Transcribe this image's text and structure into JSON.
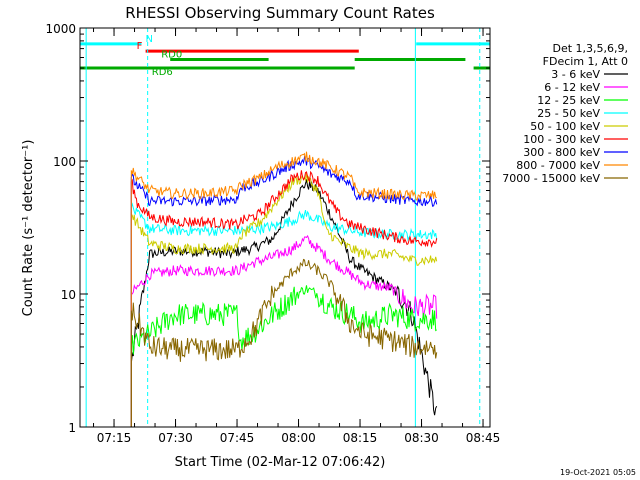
{
  "chart_data": {
    "type": "line",
    "title": "RHESSI Observing Summary Count Rates",
    "xlabel": "Start Time (02-Mar-12 07:06:42)",
    "ylabel": "Count Rate (s⁻¹ detector⁻¹)",
    "yscale": "log",
    "ylim": [
      1,
      1000
    ],
    "xlim_minutes": [
      0,
      100
    ],
    "x_ticks": [
      {
        "label": "07:15",
        "minute": 8.3
      },
      {
        "label": "07:30",
        "minute": 23.3
      },
      {
        "label": "07:45",
        "minute": 38.3
      },
      {
        "label": "08:00",
        "minute": 53.3
      },
      {
        "label": "08:15",
        "minute": 68.3
      },
      {
        "label": "08:30",
        "minute": 83.3
      },
      {
        "label": "08:45",
        "minute": 98.3
      }
    ],
    "y_ticks": [
      {
        "label": "1",
        "value": 1
      },
      {
        "label": "10",
        "value": 10
      },
      {
        "label": "100",
        "value": 100
      },
      {
        "label": "1000",
        "value": 1000
      }
    ],
    "legend": {
      "header": [
        "Det 1,3,5,6,9,",
        "FDecim 1, Att 0"
      ],
      "placement": "right"
    },
    "flags": [
      {
        "label": "N",
        "color": "#00ffff",
        "level": 760,
        "segments": [
          [
            0,
            15
          ],
          [
            82,
            100
          ]
        ]
      },
      {
        "label": "F",
        "color": "#ff0000",
        "level": 670,
        "segments": [
          [
            16,
            68
          ]
        ]
      },
      {
        "label": "RD0",
        "color": "#00aa00",
        "level": 580,
        "segments": [
          [
            22,
            46
          ],
          [
            67,
            94
          ]
        ]
      },
      {
        "label": "RD6",
        "color": "#00aa00",
        "level": 500,
        "segments": [
          [
            0,
            67
          ],
          [
            96,
            100
          ]
        ]
      }
    ],
    "vertical_lines": [
      {
        "minute": 1.5,
        "style": "solid",
        "color": "#00ffff"
      },
      {
        "minute": 16.5,
        "style": "dashed",
        "color": "#00ffff"
      },
      {
        "minute": 81.8,
        "style": "solid",
        "color": "#00ffff"
      },
      {
        "minute": 97.5,
        "style": "dashed",
        "color": "#00ffff"
      }
    ],
    "data_window_minutes": [
      12.5,
      87
    ],
    "series": [
      {
        "name": "3 - 6 keV",
        "color": "#000000",
        "points": [
          [
            12.5,
            3
          ],
          [
            17,
            20
          ],
          [
            23,
            21
          ],
          [
            30,
            21
          ],
          [
            37,
            20
          ],
          [
            38.5,
            21
          ],
          [
            42,
            22
          ],
          [
            47,
            26
          ],
          [
            52,
            50
          ],
          [
            55,
            68
          ],
          [
            58,
            60
          ],
          [
            61,
            40
          ],
          [
            66,
            18
          ],
          [
            69,
            15
          ],
          [
            76,
            11
          ],
          [
            79,
            9
          ],
          [
            81,
            7
          ],
          [
            87,
            1.2
          ]
        ]
      },
      {
        "name": "6 - 12 keV",
        "color": "#ff00ff",
        "points": [
          [
            12.5,
            10
          ],
          [
            17,
            14
          ],
          [
            23,
            15
          ],
          [
            30,
            15
          ],
          [
            38.5,
            15
          ],
          [
            42,
            17
          ],
          [
            47,
            19
          ],
          [
            52,
            22
          ],
          [
            55,
            26
          ],
          [
            58,
            22
          ],
          [
            61,
            18
          ],
          [
            66,
            14
          ],
          [
            69,
            12
          ],
          [
            76,
            11
          ],
          [
            81,
            8
          ],
          [
            87,
            8
          ]
        ]
      },
      {
        "name": "12 - 25 keV",
        "color": "#00ff00",
        "points": [
          [
            12.5,
            4
          ],
          [
            17,
            5
          ],
          [
            23,
            7
          ],
          [
            30,
            7
          ],
          [
            38.5,
            7
          ],
          [
            39,
            4.5
          ],
          [
            42,
            5
          ],
          [
            47,
            7
          ],
          [
            52,
            9.5
          ],
          [
            55,
            11
          ],
          [
            58,
            10
          ],
          [
            61,
            8
          ],
          [
            66,
            7
          ],
          [
            69,
            6
          ],
          [
            76,
            7
          ],
          [
            81,
            6.5
          ],
          [
            87,
            6.5
          ]
        ]
      },
      {
        "name": "25 - 50 keV",
        "color": "#00ffff",
        "points": [
          [
            12.5,
            45
          ],
          [
            17,
            31
          ],
          [
            23,
            30
          ],
          [
            30,
            30
          ],
          [
            38.5,
            30
          ],
          [
            39,
            30
          ],
          [
            47,
            32
          ],
          [
            52,
            36
          ],
          [
            55,
            40
          ],
          [
            58,
            36
          ],
          [
            61,
            32
          ],
          [
            66,
            30
          ],
          [
            69,
            29
          ],
          [
            76,
            28
          ],
          [
            81,
            28
          ],
          [
            87,
            28
          ]
        ]
      },
      {
        "name": "50 - 100 keV",
        "color": "#cccc00",
        "points": [
          [
            12.5,
            40
          ],
          [
            17,
            24
          ],
          [
            23,
            22
          ],
          [
            30,
            22
          ],
          [
            38.5,
            22
          ],
          [
            39,
            27
          ],
          [
            44,
            35
          ],
          [
            48,
            50
          ],
          [
            52,
            70
          ],
          [
            55,
            76
          ],
          [
            58,
            60
          ],
          [
            60,
            30
          ],
          [
            63,
            25
          ],
          [
            66,
            22
          ],
          [
            69,
            20
          ],
          [
            76,
            20
          ],
          [
            81,
            18
          ],
          [
            87,
            18
          ]
        ]
      },
      {
        "name": "100 - 300 keV",
        "color": "#ff0000",
        "points": [
          [
            12.5,
            70
          ],
          [
            14,
            48
          ],
          [
            17,
            38
          ],
          [
            23,
            35
          ],
          [
            30,
            35
          ],
          [
            38.5,
            33
          ],
          [
            39,
            35
          ],
          [
            44,
            40
          ],
          [
            48,
            55
          ],
          [
            52,
            75
          ],
          [
            55,
            80
          ],
          [
            58,
            72
          ],
          [
            60,
            55
          ],
          [
            63,
            40
          ],
          [
            66,
            33
          ],
          [
            69,
            31
          ],
          [
            76,
            27
          ],
          [
            81,
            25
          ],
          [
            87,
            25
          ]
        ]
      },
      {
        "name": "300 - 800 keV",
        "color": "#0000ff",
        "points": [
          [
            12.5,
            75
          ],
          [
            17,
            50
          ],
          [
            23,
            50
          ],
          [
            30,
            50
          ],
          [
            38.5,
            52
          ],
          [
            39,
            62
          ],
          [
            44,
            70
          ],
          [
            48,
            82
          ],
          [
            52,
            95
          ],
          [
            55,
            100
          ],
          [
            58,
            92
          ],
          [
            61,
            80
          ],
          [
            66,
            70
          ],
          [
            67.5,
            55
          ],
          [
            69,
            55
          ],
          [
            76,
            52
          ],
          [
            81,
            50
          ],
          [
            87,
            50
          ]
        ]
      },
      {
        "name": "800 - 7000 keV",
        "color": "#ff8800",
        "points": [
          [
            12.5,
            85
          ],
          [
            17,
            60
          ],
          [
            23,
            57
          ],
          [
            30,
            57
          ],
          [
            38.5,
            60
          ],
          [
            39,
            65
          ],
          [
            44,
            75
          ],
          [
            48,
            90
          ],
          [
            52,
            100
          ],
          [
            55,
            108
          ],
          [
            58,
            100
          ],
          [
            61,
            90
          ],
          [
            66,
            75
          ],
          [
            67.5,
            58
          ],
          [
            69,
            58
          ],
          [
            76,
            56
          ],
          [
            81,
            55
          ],
          [
            87,
            55
          ]
        ]
      },
      {
        "name": "7000 - 15000 keV",
        "color": "#886600",
        "points": [
          [
            12.5,
            7.5
          ],
          [
            15,
            5.5
          ],
          [
            17,
            4
          ],
          [
            23,
            3.8
          ],
          [
            30,
            3.8
          ],
          [
            38.5,
            3.8
          ],
          [
            39,
            4
          ],
          [
            42,
            5
          ],
          [
            47,
            10
          ],
          [
            52,
            15
          ],
          [
            55,
            17
          ],
          [
            58,
            15
          ],
          [
            61,
            12
          ],
          [
            66,
            6
          ],
          [
            69,
            5
          ],
          [
            76,
            4.5
          ],
          [
            81,
            4
          ],
          [
            87,
            4
          ]
        ]
      }
    ]
  },
  "footer": {
    "date": "19-Oct-2021 05:05"
  }
}
